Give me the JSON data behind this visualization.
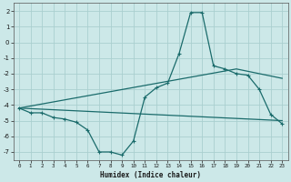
{
  "xlabel": "Humidex (Indice chaleur)",
  "bg_color": "#cce8e8",
  "grid_color": "#aacfcf",
  "line_color": "#1a6b6b",
  "xlim": [
    -0.5,
    23.5
  ],
  "ylim": [
    -7.5,
    2.5
  ],
  "yticks": [
    2,
    1,
    0,
    -1,
    -2,
    -3,
    -4,
    -5,
    -6,
    -7
  ],
  "xticks": [
    0,
    1,
    2,
    3,
    4,
    5,
    6,
    7,
    8,
    9,
    10,
    11,
    12,
    13,
    14,
    15,
    16,
    17,
    18,
    19,
    20,
    21,
    22,
    23
  ],
  "series1_x": [
    0,
    1,
    2,
    3,
    4,
    5,
    6,
    7,
    8,
    9,
    10,
    11,
    12,
    13,
    14,
    15,
    16,
    17,
    18,
    19,
    20,
    21,
    22,
    23
  ],
  "series1_y": [
    -4.2,
    -4.5,
    -4.5,
    -4.8,
    -4.9,
    -5.1,
    -5.6,
    -7.0,
    -7.0,
    -7.2,
    -6.3,
    -3.5,
    -2.9,
    -2.6,
    -0.7,
    1.9,
    1.9,
    -1.5,
    -1.7,
    -2.0,
    -2.1,
    -3.0,
    -4.6,
    -5.2
  ],
  "series2_x": [
    0,
    23
  ],
  "series2_y": [
    -4.2,
    -5.0
  ],
  "series3_x": [
    0,
    19,
    23
  ],
  "series3_y": [
    -4.2,
    -1.7,
    -2.3
  ]
}
